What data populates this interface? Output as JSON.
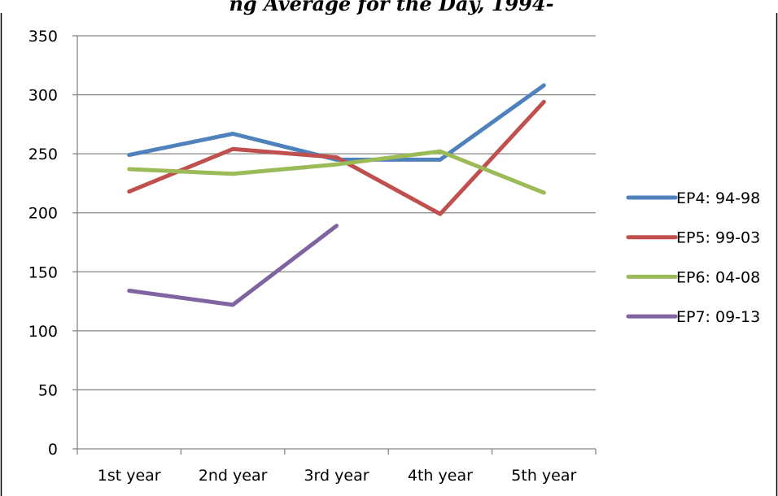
{
  "chart_data": {
    "type": "line",
    "title": "ng Average for the Day, 1994-",
    "categories": [
      "1st year",
      "2nd year",
      "3rd year",
      "4th year",
      "5th year"
    ],
    "ylim": [
      0,
      350
    ],
    "yticks": [
      0,
      50,
      100,
      150,
      200,
      250,
      300,
      350
    ],
    "grid": true,
    "legend_position": "right",
    "series": [
      {
        "name": "EP4: 94-98",
        "color": "#4F81BD",
        "values": [
          249,
          267,
          245,
          245,
          308
        ]
      },
      {
        "name": "EP5: 99-03",
        "color": "#C0504D",
        "values": [
          218,
          254,
          247,
          199,
          294
        ]
      },
      {
        "name": "EP6: 04-08",
        "color": "#9BBB59",
        "values": [
          237,
          233,
          241,
          252,
          217
        ]
      },
      {
        "name": "EP7: 09-13",
        "color": "#8064A2",
        "values": [
          134,
          122,
          189,
          null,
          null
        ]
      }
    ]
  }
}
